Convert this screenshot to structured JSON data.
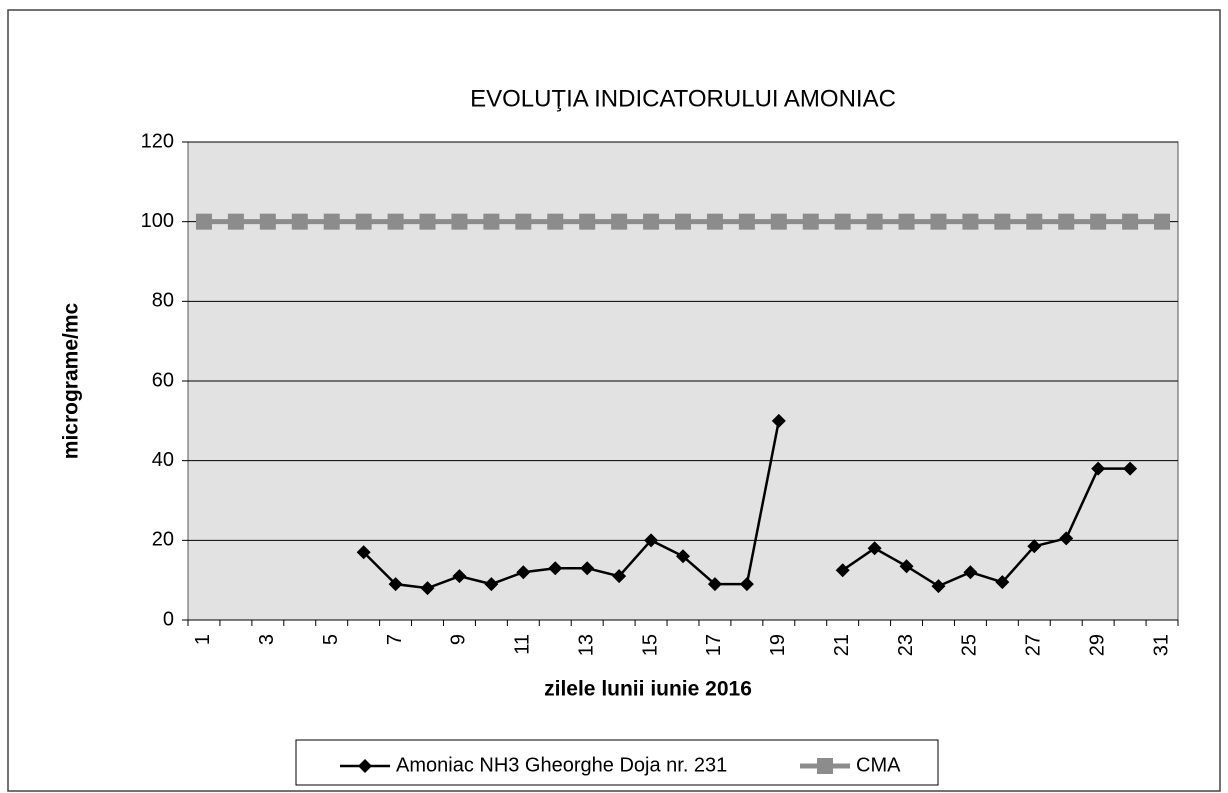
{
  "chart_data": {
    "type": "line",
    "title": "EVOLUŢIA INDICATORULUI AMONIAC",
    "x_label": "zilele lunii iunie 2016",
    "y_label": "micrograme/mc",
    "categories": [
      1,
      null,
      3,
      null,
      5,
      null,
      7,
      null,
      9,
      null,
      11,
      null,
      13,
      null,
      15,
      null,
      17,
      null,
      19,
      null,
      21,
      null,
      23,
      null,
      25,
      null,
      27,
      null,
      29,
      null,
      31
    ],
    "series": [
      {
        "name": "Amoniac NH3 Gheorghe Doja nr. 231",
        "color": "#000000",
        "marker": "diamond",
        "values": [
          null,
          null,
          null,
          null,
          null,
          17,
          9,
          8,
          11,
          9,
          12,
          13,
          13,
          11,
          20,
          16,
          9,
          9,
          50,
          null,
          12.5,
          18,
          13.5,
          8.5,
          12,
          9.5,
          18.5,
          20.5,
          38,
          38,
          null
        ]
      },
      {
        "name": "CMA",
        "color": "#8c8c8c",
        "marker": "square",
        "values": [
          100,
          100,
          100,
          100,
          100,
          100,
          100,
          100,
          100,
          100,
          100,
          100,
          100,
          100,
          100,
          100,
          100,
          100,
          100,
          100,
          100,
          100,
          100,
          100,
          100,
          100,
          100,
          100,
          100,
          100,
          100
        ]
      }
    ],
    "ylim": [
      0,
      120
    ],
    "yticks": [
      0,
      20,
      40,
      60,
      80,
      100,
      120
    ],
    "grid": true,
    "legend": "bottom"
  }
}
